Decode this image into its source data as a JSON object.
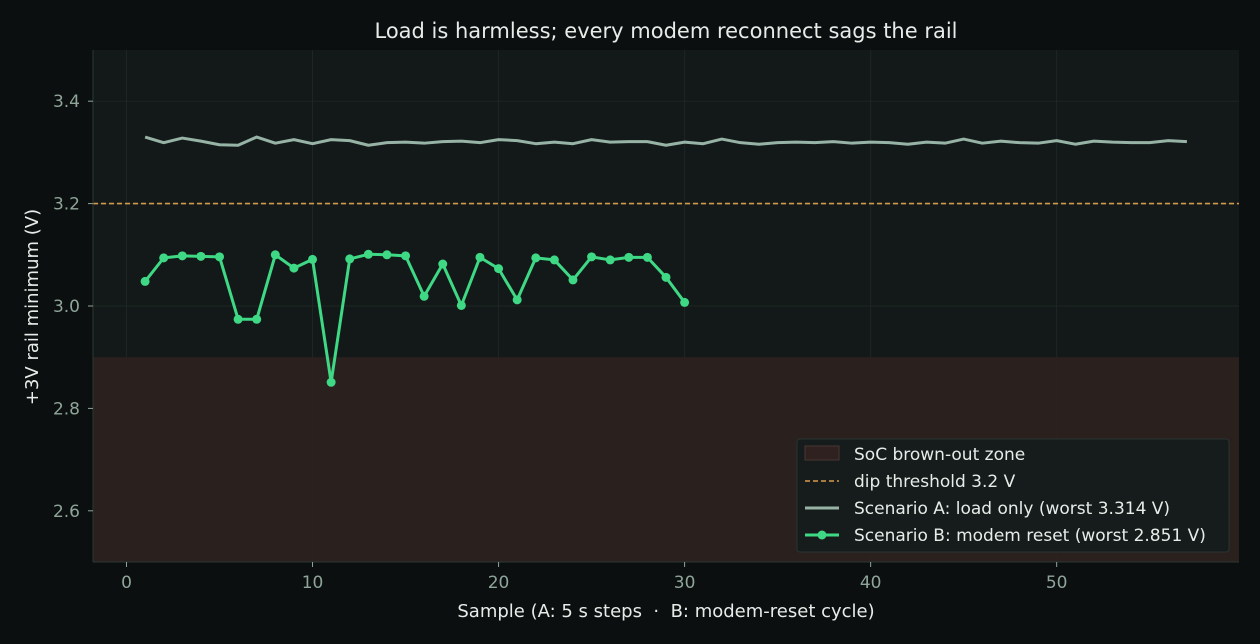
{
  "chart_data": {
    "type": "line",
    "title": "Load is harmless; every modem reconnect sags the rail",
    "xlabel": "Sample (A: 5 s steps  ·  B: modem-reset cycle)",
    "ylabel": "+3V rail minimum (V)",
    "xlim": [
      -1.8,
      59.8
    ],
    "ylim": [
      2.5,
      3.5
    ],
    "xticks": [
      0,
      10,
      20,
      30,
      40,
      50
    ],
    "yticks": [
      2.6,
      2.8,
      3.0,
      3.2,
      3.4
    ],
    "xtick_labels": [
      "0",
      "10",
      "20",
      "30",
      "40",
      "50"
    ],
    "ytick_labels": [
      "2.6",
      "2.8",
      "3.0",
      "3.2",
      "3.4"
    ],
    "grid": true,
    "legend_position": "lower-right",
    "colors": {
      "background": "#0b0f0f",
      "plot_bg": "#121918",
      "zone": "#2e211f",
      "threshold": "#d69a4c",
      "series_a": "#97b3a6",
      "series_b": "#3fd885",
      "text": "#e6ece8",
      "tick_text": "#8fa59a",
      "grid": "#1d2624"
    },
    "brownout_zone": {
      "label": "SoC brown-out zone",
      "y_from": 2.5,
      "y_to": 2.9
    },
    "threshold": {
      "label": "dip threshold 3.2 V",
      "y": 3.2
    },
    "series": [
      {
        "name": "Scenario A: load only (worst 3.314 V)",
        "x": [
          1,
          2,
          3,
          4,
          5,
          6,
          7,
          8,
          9,
          10,
          11,
          12,
          13,
          14,
          15,
          16,
          17,
          18,
          19,
          20,
          21,
          22,
          23,
          24,
          25,
          26,
          27,
          28,
          29,
          30,
          31,
          32,
          33,
          34,
          35,
          36,
          37,
          38,
          39,
          40,
          41,
          42,
          43,
          44,
          45,
          46,
          47,
          48,
          49,
          50,
          51,
          52,
          53,
          54,
          55,
          56,
          57
        ],
        "values": [
          3.33,
          3.319,
          3.328,
          3.322,
          3.315,
          3.314,
          3.33,
          3.318,
          3.325,
          3.317,
          3.325,
          3.323,
          3.314,
          3.319,
          3.32,
          3.318,
          3.321,
          3.322,
          3.319,
          3.325,
          3.323,
          3.317,
          3.32,
          3.317,
          3.325,
          3.32,
          3.321,
          3.321,
          3.314,
          3.32,
          3.317,
          3.326,
          3.319,
          3.316,
          3.319,
          3.32,
          3.319,
          3.321,
          3.318,
          3.32,
          3.319,
          3.316,
          3.32,
          3.318,
          3.326,
          3.318,
          3.322,
          3.319,
          3.318,
          3.323,
          3.316,
          3.322,
          3.32,
          3.319,
          3.319,
          3.323,
          3.321
        ]
      },
      {
        "name": "Scenario B: modem reset (worst 2.851 V)",
        "x": [
          1,
          2,
          3,
          4,
          5,
          6,
          7,
          8,
          9,
          10,
          11,
          12,
          13,
          14,
          15,
          16,
          17,
          18,
          19,
          20,
          21,
          22,
          23,
          24,
          25,
          26,
          27,
          28,
          29,
          30
        ],
        "values": [
          3.048,
          3.094,
          3.098,
          3.097,
          3.096,
          2.974,
          2.974,
          3.1,
          3.074,
          3.091,
          2.851,
          3.092,
          3.101,
          3.1,
          3.098,
          3.019,
          3.082,
          3.001,
          3.095,
          3.073,
          3.012,
          3.094,
          3.09,
          3.051,
          3.096,
          3.09,
          3.095,
          3.095,
          3.056,
          3.007
        ]
      }
    ]
  }
}
